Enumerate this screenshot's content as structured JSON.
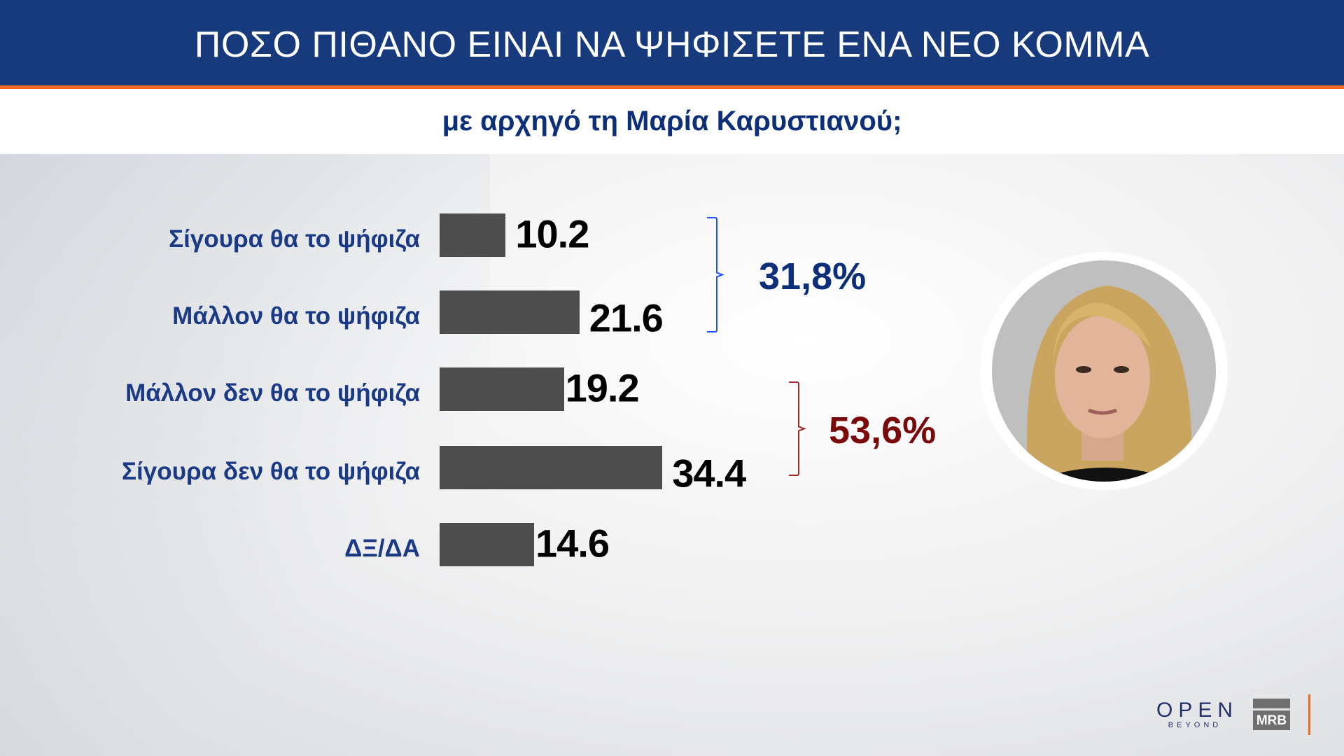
{
  "header": {
    "title": "ΠΟΣΟ ΠΙΘΑΝΟ ΕΙΝΑΙ ΝΑ ΨΗΦΙΣΕΤΕ ΕΝΑ ΝΕΟ ΚΟΜΜΑ",
    "subtitle": "με αρχηγό τη Μαρία Καρυστιανού;"
  },
  "chart_data": {
    "type": "bar",
    "orientation": "horizontal",
    "title": "ΠΟΣΟ ΠΙΘΑΝΟ ΕΙΝΑΙ ΝΑ ΨΗΦΙΣΕΤΕ ΕΝΑ ΝΕΟ ΚΟΜΜΑ",
    "subtitle": "με αρχηγό τη Μαρία Καρυστιανού;",
    "categories": [
      "Σίγουρα θα το ψήφιζα",
      "Μάλλον θα το ψήφιζα",
      "Μάλλον δεν θα το ψήφιζα",
      "Σίγουρα δεν θα το ψήφιζα",
      "ΔΞ/ΔΑ"
    ],
    "values": [
      10.2,
      21.6,
      19.2,
      34.4,
      14.6
    ],
    "value_labels": [
      "10.2",
      "21.6",
      "19.2",
      "34.4",
      "14.6"
    ],
    "bar_color": "#4d4d4d",
    "groups": [
      {
        "label": "31,8%",
        "members": [
          0,
          1
        ],
        "color": "#0d2f7a",
        "bracket_color": "#1f4fff"
      },
      {
        "label": "53,6%",
        "members": [
          2,
          3
        ],
        "color": "#7a0a0a",
        "bracket_color": "#a52a2a"
      }
    ],
    "grid": false
  },
  "logos": {
    "open": "OPEN",
    "open_sub": "BEYOND",
    "mrb": "MRB"
  },
  "colors": {
    "header": "#163a7c",
    "accent": "#f26a21"
  }
}
